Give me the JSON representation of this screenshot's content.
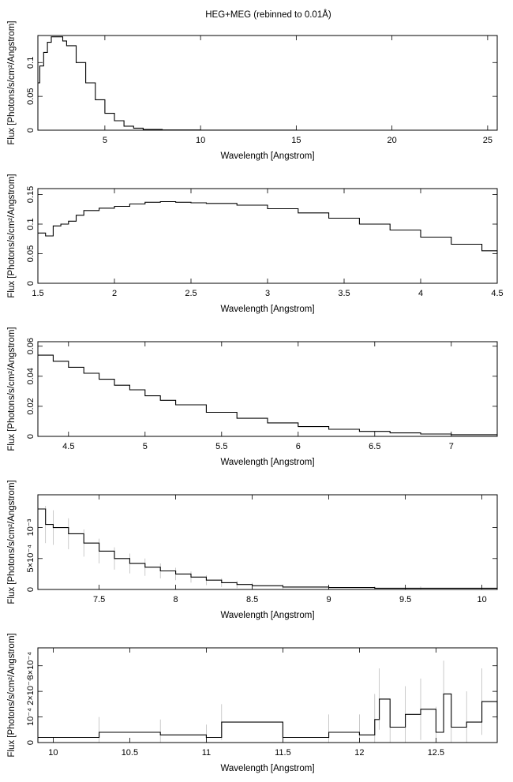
{
  "title": "HEG+MEG (rebinned to 0.01Å)",
  "chart_data": [
    {
      "type": "line",
      "xlabel": "Wavelength [Angstrom]",
      "ylabel": "Flux [Photons/s/cm²/Angstrom]",
      "xlim": [
        1.5,
        25.5
      ],
      "ylim": [
        0,
        0.14
      ],
      "xticks": [
        {
          "v": 5,
          "label": "5"
        },
        {
          "v": 10,
          "label": "10"
        },
        {
          "v": 15,
          "label": "15"
        },
        {
          "v": 20,
          "label": "20"
        },
        {
          "v": 25,
          "label": "25"
        }
      ],
      "yticks": [
        {
          "v": 0,
          "label": "0"
        },
        {
          "v": 0.05,
          "label": "0.05"
        },
        {
          "v": 0.1,
          "label": "0.1"
        }
      ],
      "x": [
        1.5,
        1.6,
        1.8,
        2.0,
        2.2,
        2.5,
        2.8,
        3.0,
        3.5,
        4.0,
        4.5,
        5.0,
        5.5,
        6.0,
        6.5,
        7.0,
        8.0,
        10.0,
        15.0,
        20.0,
        25.5
      ],
      "y": [
        0.07,
        0.095,
        0.115,
        0.13,
        0.138,
        0.138,
        0.132,
        0.125,
        0.1,
        0.07,
        0.045,
        0.025,
        0.014,
        0.006,
        0.003,
        0.001,
        0.0004,
        0.0001,
        5e-05,
        5e-05,
        5e-05
      ],
      "errors": []
    },
    {
      "type": "line",
      "xlabel": "Wavelength [Angstrom]",
      "ylabel": "Flux [Photons/s/cm²/Angstrom]",
      "xlim": [
        1.5,
        4.5
      ],
      "ylim": [
        0,
        0.16
      ],
      "xticks": [
        {
          "v": 1.5,
          "label": "1.5"
        },
        {
          "v": 2,
          "label": "2"
        },
        {
          "v": 2.5,
          "label": "2.5"
        },
        {
          "v": 3,
          "label": "3"
        },
        {
          "v": 3.5,
          "label": "3.5"
        },
        {
          "v": 4,
          "label": "4"
        },
        {
          "v": 4.5,
          "label": "4.5"
        }
      ],
      "yticks": [
        {
          "v": 0,
          "label": "0"
        },
        {
          "v": 0.05,
          "label": "0.05"
        },
        {
          "v": 0.1,
          "label": "0.1"
        },
        {
          "v": 0.15,
          "label": "0.15"
        }
      ],
      "x": [
        1.5,
        1.55,
        1.6,
        1.65,
        1.7,
        1.75,
        1.8,
        1.9,
        2.0,
        2.1,
        2.2,
        2.3,
        2.4,
        2.5,
        2.6,
        2.8,
        3.0,
        3.2,
        3.4,
        3.6,
        3.8,
        4.0,
        4.2,
        4.4,
        4.5
      ],
      "y": [
        0.085,
        0.08,
        0.097,
        0.1,
        0.105,
        0.115,
        0.123,
        0.127,
        0.13,
        0.134,
        0.137,
        0.138,
        0.137,
        0.136,
        0.135,
        0.132,
        0.126,
        0.119,
        0.11,
        0.1,
        0.09,
        0.078,
        0.066,
        0.055,
        0.05
      ],
      "errors": []
    },
    {
      "type": "line",
      "xlabel": "Wavelength [Angstrom]",
      "ylabel": "Flux [Photons/s/cm²/Angstrom]",
      "xlim": [
        4.3,
        7.3
      ],
      "ylim": [
        0,
        0.063
      ],
      "xticks": [
        {
          "v": 4.5,
          "label": "4.5"
        },
        {
          "v": 5,
          "label": "5"
        },
        {
          "v": 5.5,
          "label": "5.5"
        },
        {
          "v": 6,
          "label": "6"
        },
        {
          "v": 6.5,
          "label": "6.5"
        },
        {
          "v": 7,
          "label": "7"
        }
      ],
      "yticks": [
        {
          "v": 0,
          "label": "0"
        },
        {
          "v": 0.02,
          "label": "0.02"
        },
        {
          "v": 0.04,
          "label": "0.04"
        },
        {
          "v": 0.06,
          "label": "0.06"
        }
      ],
      "x": [
        4.3,
        4.4,
        4.5,
        4.6,
        4.7,
        4.8,
        4.9,
        5.0,
        5.1,
        5.2,
        5.4,
        5.6,
        5.8,
        6.0,
        6.2,
        6.4,
        6.6,
        6.8,
        7.0,
        7.3
      ],
      "y": [
        0.054,
        0.05,
        0.046,
        0.042,
        0.038,
        0.034,
        0.031,
        0.027,
        0.024,
        0.021,
        0.016,
        0.012,
        0.009,
        0.0065,
        0.0047,
        0.0033,
        0.0023,
        0.0016,
        0.0011,
        0.0007
      ],
      "errors": []
    },
    {
      "type": "line",
      "xlabel": "Wavelength [Angstrom]",
      "ylabel": "Flux [Photons/s/cm²/Angstrom]",
      "xlim": [
        7.1,
        10.1
      ],
      "ylim": [
        0,
        0.00153
      ],
      "xticks": [
        {
          "v": 7.5,
          "label": "7.5"
        },
        {
          "v": 8,
          "label": "8"
        },
        {
          "v": 8.5,
          "label": "8.5"
        },
        {
          "v": 9,
          "label": "9"
        },
        {
          "v": 9.5,
          "label": "9.5"
        },
        {
          "v": 10,
          "label": "10"
        }
      ],
      "yticks": [
        {
          "v": 0,
          "label": "0"
        },
        {
          "v": 0.0005,
          "label": "5×10⁻⁴"
        },
        {
          "v": 0.001,
          "label": "10⁻³"
        }
      ],
      "x": [
        7.1,
        7.15,
        7.2,
        7.3,
        7.4,
        7.5,
        7.6,
        7.7,
        7.8,
        7.9,
        8.0,
        8.1,
        8.2,
        8.3,
        8.4,
        8.5,
        8.7,
        9.0,
        9.3,
        9.6,
        10.1
      ],
      "y": [
        0.0013,
        0.00105,
        0.001,
        0.0009,
        0.00075,
        0.00062,
        0.0005,
        0.00042,
        0.00036,
        0.0003,
        0.00025,
        0.0002,
        0.00015,
        0.00011,
        8e-05,
        6e-05,
        4e-05,
        3e-05,
        2e-05,
        2e-05,
        1e-05
      ],
      "errors": [
        0.00032,
        0.0003,
        0.00028,
        0.00025,
        0.00022,
        0.0002,
        0.00018,
        0.00016,
        0.00014,
        0.00012,
        0.0001,
        9e-05,
        8e-05,
        7e-05,
        6e-05,
        5e-05,
        4e-05,
        3e-05,
        3e-05,
        3e-05,
        2e-05
      ]
    },
    {
      "type": "line",
      "xlabel": "Wavelength [Angstrom]",
      "ylabel": "Flux [Photons/s/cm²/Angstrom]",
      "xlim": [
        9.9,
        12.9
      ],
      "ylim": [
        0,
        0.00037
      ],
      "xticks": [
        {
          "v": 10,
          "label": "10"
        },
        {
          "v": 10.5,
          "label": "10.5"
        },
        {
          "v": 11,
          "label": "11"
        },
        {
          "v": 11.5,
          "label": "11.5"
        },
        {
          "v": 12,
          "label": "12"
        },
        {
          "v": 12.5,
          "label": "12.5"
        }
      ],
      "yticks": [
        {
          "v": 0,
          "label": "0"
        },
        {
          "v": 0.0001,
          "label": "10⁻⁴"
        },
        {
          "v": 0.0002,
          "label": "2×10⁻⁴"
        },
        {
          "v": 0.0003,
          "label": "3×10⁻⁴"
        }
      ],
      "x": [
        9.9,
        10.3,
        10.7,
        11.0,
        11.1,
        11.5,
        11.8,
        12.0,
        12.1,
        12.13,
        12.2,
        12.3,
        12.4,
        12.5,
        12.55,
        12.6,
        12.7,
        12.8,
        12.9
      ],
      "y": [
        2e-05,
        4e-05,
        3e-05,
        2e-05,
        8e-05,
        2e-05,
        4e-05,
        3e-05,
        9e-05,
        0.00017,
        6e-05,
        0.00011,
        0.00013,
        4e-05,
        0.00019,
        6e-05,
        8e-05,
        0.00016,
        9e-05
      ],
      "errors": [
        4e-05,
        6e-05,
        6e-05,
        5e-05,
        7e-05,
        6e-05,
        7e-05,
        8e-05,
        0.0001,
        0.00012,
        0.0001,
        0.00011,
        0.00012,
        0.0001,
        0.00013,
        0.00011,
        0.00012,
        0.00013,
        0.00012
      ]
    }
  ]
}
